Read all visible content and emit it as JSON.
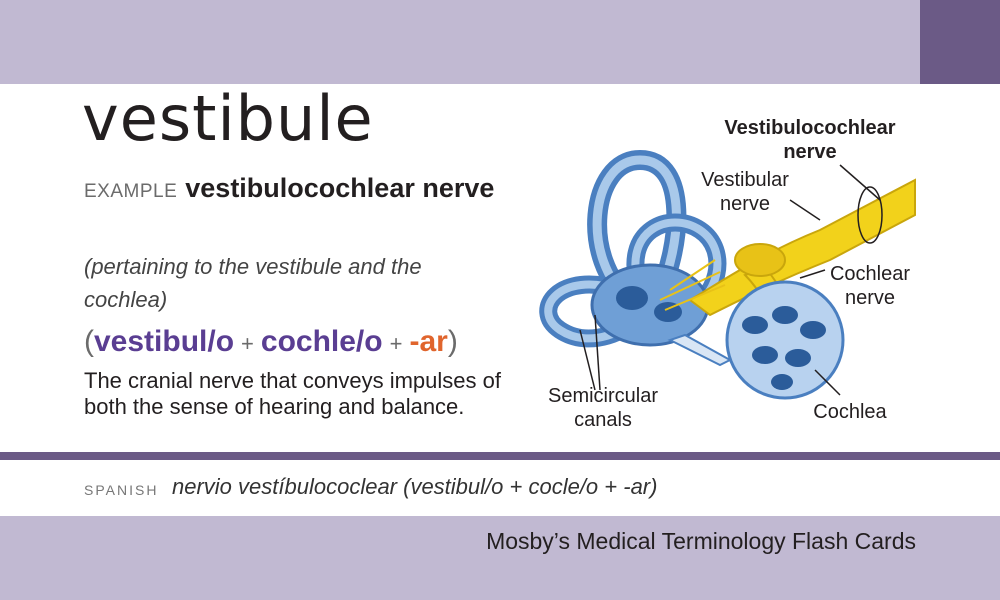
{
  "card": {
    "term": "vestibule",
    "example_label": "EXAMPLE",
    "example_term": "vestibulocochlear nerve",
    "meaning": "(pertaining to the vestibule and the cochlea)",
    "breakdown": {
      "open": "(",
      "part1": "vestibul/o",
      "plus1": "+",
      "part2": "cochle/o",
      "plus2": "+",
      "part3": "-ar",
      "close": ")"
    },
    "definition": "The cranial nerve that conveys impulses of both the sense of hearing and balance."
  },
  "illustration": {
    "labels": {
      "vestibulocochlear_nerve_line1": "Vestibulocochlear",
      "vestibulocochlear_nerve_line2": "nerve",
      "vestibular_nerve_line1": "Vestibular",
      "vestibular_nerve_line2": "nerve",
      "cochlear_nerve_line1": "Cochlear",
      "cochlear_nerve_line2": "nerve",
      "semicircular_line1": "Semicircular",
      "semicircular_line2": "canals",
      "cochlea": "Cochlea"
    }
  },
  "spanish": {
    "label": "SPANISH",
    "text": "nervio vestíbulococlear (vestibul/o + cocle/o + -ar)"
  },
  "footer": {
    "title": "Mosby’s Medical Terminology Flash Cards"
  },
  "colors": {
    "band": "#c1b9d2",
    "accent": "#6b5a86",
    "root": "#5a3e92",
    "suffix": "#e0652d"
  }
}
